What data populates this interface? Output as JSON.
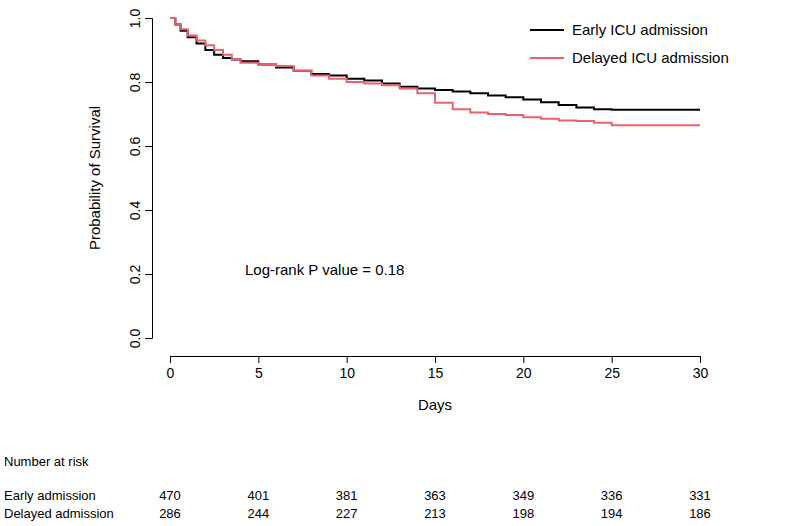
{
  "chart_data": {
    "type": "line",
    "line_style": "step",
    "x_label": "Days",
    "y_label": "Probability of Survival",
    "annotation": "Log-rank P value = 0.18",
    "legend": "top-right",
    "xlim": [
      0,
      30
    ],
    "ylim": [
      0,
      1
    ],
    "xticks": [
      0,
      5,
      10,
      15,
      20,
      25,
      30
    ],
    "yticks": [
      {
        "value": 0,
        "label": "0.0"
      },
      {
        "value": 0.2,
        "label": "0.2"
      },
      {
        "value": 0.4,
        "label": "0.4"
      },
      {
        "value": 0.6,
        "label": "0.6"
      },
      {
        "value": 0.8,
        "label": "0.8"
      },
      {
        "value": 1,
        "label": "1.0"
      }
    ],
    "x": [
      0,
      0.3,
      0.6,
      1,
      1.5,
      2,
      2.5,
      3,
      3.5,
      4,
      5,
      6,
      7,
      8,
      9,
      10,
      11,
      12,
      13,
      14,
      15,
      16,
      17,
      18,
      19,
      20,
      21,
      22,
      23,
      24,
      25,
      30
    ],
    "series": [
      {
        "name": "Early ICU admission",
        "color": "#000000",
        "values": [
          1,
          0.98,
          0.96,
          0.94,
          0.92,
          0.9,
          0.885,
          0.875,
          0.87,
          0.865,
          0.855,
          0.845,
          0.835,
          0.825,
          0.82,
          0.81,
          0.805,
          0.795,
          0.785,
          0.78,
          0.775,
          0.77,
          0.765,
          0.758,
          0.752,
          0.745,
          0.737,
          0.728,
          0.72,
          0.715,
          0.713,
          0.713
        ]
      },
      {
        "name": "Delayed ICU admission",
        "color": "#e8636b",
        "values": [
          1,
          0.98,
          0.965,
          0.945,
          0.93,
          0.915,
          0.9,
          0.885,
          0.87,
          0.86,
          0.855,
          0.85,
          0.835,
          0.82,
          0.81,
          0.8,
          0.795,
          0.79,
          0.78,
          0.765,
          0.735,
          0.715,
          0.705,
          0.7,
          0.697,
          0.69,
          0.685,
          0.68,
          0.678,
          0.673,
          0.665,
          0.665
        ]
      }
    ],
    "risk_table": {
      "title": "Number at risk",
      "rows": [
        {
          "name": "Early admission",
          "values": [
            470,
            401,
            381,
            363,
            349,
            336,
            331
          ]
        },
        {
          "name": "Delayed admission",
          "values": [
            286,
            244,
            227,
            213,
            198,
            194,
            186
          ]
        }
      ]
    }
  }
}
